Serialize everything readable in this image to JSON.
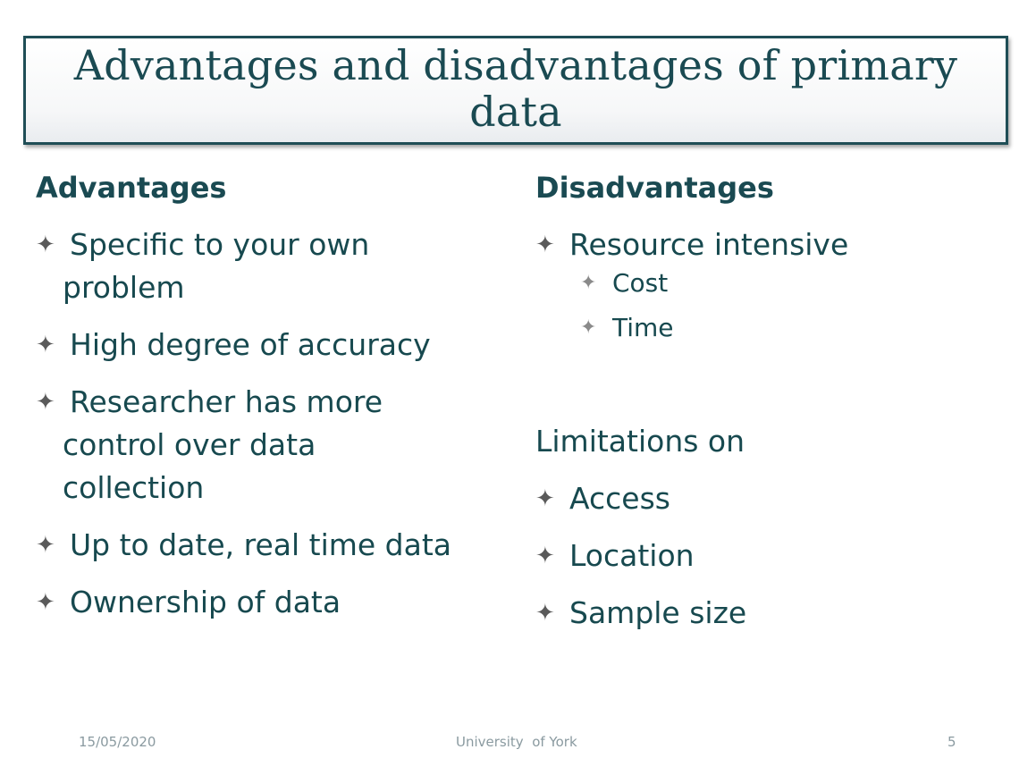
{
  "title": {
    "line1": "Advantages and disadvantages of primary",
    "line2": "data"
  },
  "advantages": {
    "heading": "Advantages",
    "items": [
      {
        "line1": "Specific to your own",
        "line2": "problem"
      },
      {
        "line1": "High degree of accuracy"
      },
      {
        "line1": "Researcher has more",
        "line2": "control over data",
        "line3": "collection"
      },
      {
        "line1": "Up to date, real time data"
      },
      {
        "line1": "Ownership of data"
      }
    ]
  },
  "disadvantages": {
    "heading": "Disadvantages",
    "items": [
      {
        "label": "Resource intensive",
        "sub": [
          "Cost",
          "Time"
        ]
      }
    ],
    "limitations_label": "Limitations on",
    "limitations": [
      "Access",
      "Location",
      "Sample size"
    ]
  },
  "footer": {
    "date": "15/05/2020",
    "org": "University  of York",
    "slide_number": "5"
  },
  "icons": {
    "bullet": "four-pointed-star-icon"
  },
  "colors": {
    "text": "#17494f",
    "title_border": "#1f4e56",
    "bullet": "#5a5a5a",
    "footer": "#8a9aa0"
  }
}
